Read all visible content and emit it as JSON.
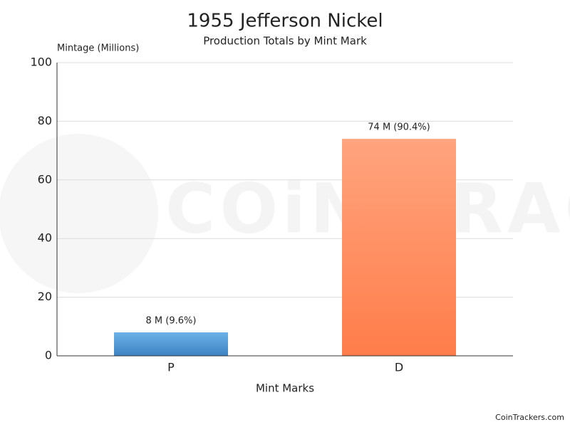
{
  "chart_data": {
    "type": "bar",
    "title": "1955 Jefferson Nickel",
    "subtitle": "Production Totals by Mint Mark",
    "y_label": "Mintage (Millions)",
    "x_label": "Mint Marks",
    "categories": [
      "P",
      "D"
    ],
    "values": [
      8,
      74
    ],
    "value_labels": [
      "8 M (9.6%)",
      "74 M (90.4%)"
    ],
    "colors": [
      [
        "#6cb2e8",
        "#3d82c2"
      ],
      [
        "#ffa47e",
        "#ff7d4a"
      ]
    ],
    "ylim": [
      0,
      100
    ],
    "yticks": [
      0,
      20,
      40,
      60,
      80,
      100
    ],
    "grid": true,
    "watermark": "COiN TRACKERS",
    "source": "CoinTrackers.com"
  }
}
